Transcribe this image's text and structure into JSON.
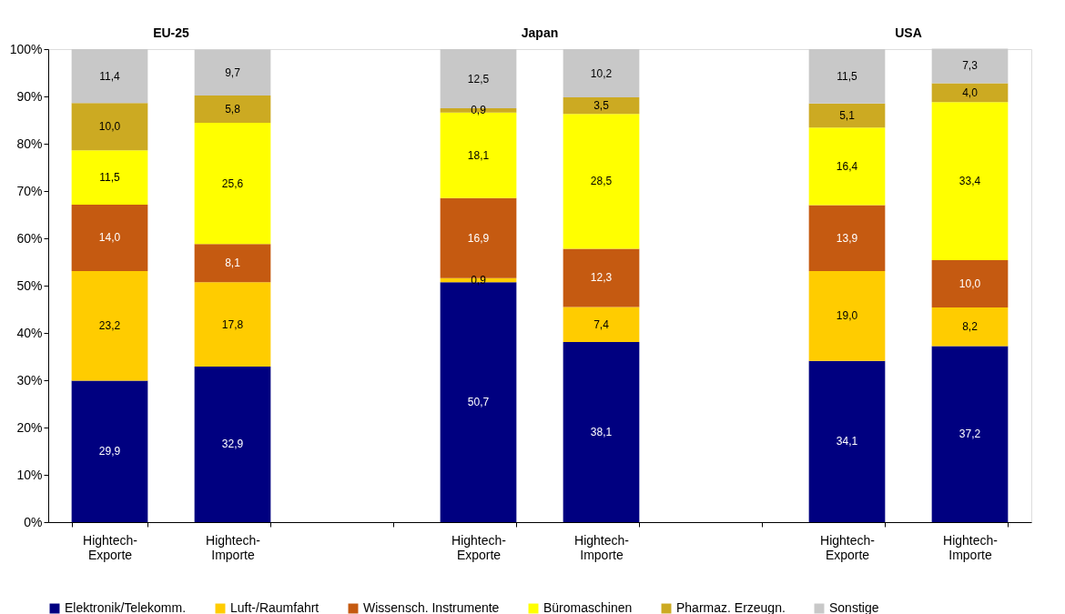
{
  "chart_data": {
    "type": "bar",
    "stacked": true,
    "categories": [
      "Hightech-Exporte",
      "Hightech-Importe",
      null,
      "Hightech-Exporte",
      "Hightech-Importe",
      null,
      "Hightech-Exporte",
      "Hightech-Importe"
    ],
    "annotations": [
      "EU-25",
      "Japan",
      "USA"
    ],
    "ylim": [
      0,
      100
    ],
    "yticks": [
      {
        "value": 0,
        "label": "0%"
      },
      {
        "value": 10,
        "label": "10%"
      },
      {
        "value": 20,
        "label": "20%"
      },
      {
        "value": 30,
        "label": "30%"
      },
      {
        "value": 40,
        "label": "40%"
      },
      {
        "value": 50,
        "label": "50%"
      },
      {
        "value": 60,
        "label": "60%"
      },
      {
        "value": 70,
        "label": "70%"
      },
      {
        "value": 80,
        "label": "80%"
      },
      {
        "value": 90,
        "label": "90%"
      },
      {
        "value": 100,
        "label": "100%"
      }
    ],
    "grid": false,
    "legend": "bottom",
    "series": [
      {
        "name": "Elektronik/Telekomm.",
        "color": "#000080",
        "values": [
          29.9,
          32.9,
          null,
          50.7,
          38.1,
          null,
          34.1,
          37.2
        ],
        "value_labels": [
          "29,9",
          "32,9",
          null,
          "50,7",
          "38,1",
          null,
          "34,1",
          "37,2"
        ]
      },
      {
        "name": "Luft-/Raumfahrt",
        "color": "#ffcc00",
        "values": [
          23.2,
          17.8,
          null,
          0.9,
          7.4,
          null,
          19.0,
          8.2
        ],
        "value_labels": [
          "23,2",
          "17,8",
          null,
          "0,9",
          "7,4",
          null,
          "19,0",
          "8,2"
        ]
      },
      {
        "name": "Wissensch. Instrumente",
        "color": "#c55a11",
        "values": [
          14.0,
          8.1,
          null,
          16.9,
          12.3,
          null,
          13.9,
          10.0
        ],
        "value_labels": [
          "14,0",
          "8,1",
          null,
          "16,9",
          "12,3",
          null,
          "13,9",
          "10,0"
        ]
      },
      {
        "name": "Büromaschinen",
        "color": "#ffff00",
        "values": [
          11.5,
          25.6,
          null,
          18.1,
          28.5,
          null,
          16.4,
          33.4
        ],
        "value_labels": [
          "11,5",
          "25,6",
          null,
          "18,1",
          "28,5",
          null,
          "16,4",
          "33,4"
        ]
      },
      {
        "name": "Pharmaz. Erzeugn.",
        "color": "#ccaa22",
        "values": [
          10.0,
          5.8,
          null,
          0.9,
          3.5,
          null,
          5.1,
          4.0
        ],
        "value_labels": [
          "10,0",
          "5,8",
          null,
          "0,9",
          "3,5",
          null,
          "5,1",
          "4,0"
        ]
      },
      {
        "name": "Sonstige",
        "color": "#c8c8c8",
        "values": [
          11.4,
          9.7,
          null,
          12.5,
          10.2,
          null,
          11.5,
          7.3
        ],
        "value_labels": [
          "11,4",
          "9,7",
          null,
          "12,5",
          "10,2",
          null,
          "11,5",
          "7,3"
        ]
      }
    ]
  }
}
